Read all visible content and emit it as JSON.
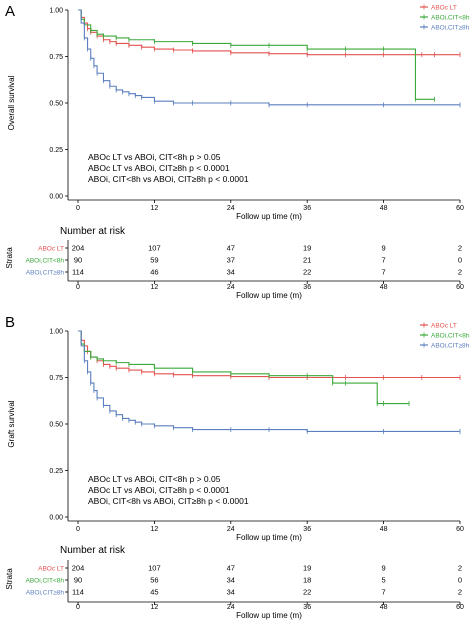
{
  "chart_data": [
    {
      "panel_label": "A",
      "type": "line",
      "step": true,
      "xlabel": "Follow up time (m)",
      "ylabel": "Overall survival",
      "xlim": [
        0,
        60
      ],
      "ylim": [
        0,
        1
      ],
      "xticks": [
        "0",
        "12",
        "24",
        "36",
        "48",
        "60"
      ],
      "yticks": [
        "0.00",
        "0.25",
        "0.50",
        "0.75",
        "1.00"
      ],
      "legend_position": "top-right",
      "annotations": [
        "ABOc LT vs ABOi, CIT<8h p > 0.05",
        "ABOc LT vs ABOi, CIT≥8h p < 0.0001",
        "ABOi, CIT<8h vs ABOi, CIT≥8h p < 0.0001"
      ],
      "series": [
        {
          "name": "ABOc LT",
          "color": "#e4524f",
          "x": [
            0,
            0.5,
            1,
            1.5,
            2,
            3,
            4,
            5,
            6,
            8,
            10,
            12,
            15,
            18,
            24,
            30,
            36,
            42,
            48,
            54,
            56,
            60
          ],
          "y": [
            1.0,
            0.96,
            0.93,
            0.9,
            0.88,
            0.86,
            0.84,
            0.83,
            0.82,
            0.81,
            0.8,
            0.79,
            0.785,
            0.78,
            0.77,
            0.765,
            0.76,
            0.76,
            0.76,
            0.76,
            0.76,
            0.76
          ]
        },
        {
          "name": "ABOi,CIT<8h",
          "color": "#3aa83a",
          "x": [
            0,
            0.5,
            1,
            2,
            3,
            4,
            6,
            8,
            12,
            18,
            24,
            30,
            36,
            42,
            48,
            53,
            56
          ],
          "y": [
            1.0,
            0.95,
            0.92,
            0.89,
            0.87,
            0.86,
            0.85,
            0.84,
            0.83,
            0.82,
            0.81,
            0.81,
            0.79,
            0.79,
            0.79,
            0.52,
            0.52
          ]
        },
        {
          "name": "ABOi,CIT≥8h",
          "color": "#5b7fbf",
          "x": [
            0,
            0.5,
            1,
            1.5,
            2,
            2.5,
            3,
            4,
            5,
            6,
            7,
            8,
            9,
            10,
            12,
            15,
            18,
            24,
            30,
            36,
            48,
            60
          ],
          "y": [
            1.0,
            0.93,
            0.85,
            0.79,
            0.74,
            0.7,
            0.66,
            0.62,
            0.59,
            0.57,
            0.56,
            0.55,
            0.54,
            0.53,
            0.51,
            0.5,
            0.5,
            0.5,
            0.49,
            0.49,
            0.49,
            0.49
          ]
        }
      ],
      "risk_table": {
        "title": "Number at risk",
        "strata_label": "Strata",
        "xlabel": "Follow up time (m)",
        "rows": [
          {
            "label": "ABOc LT",
            "values": [
              "204",
              "107",
              "47",
              "19",
              "9",
              "2"
            ]
          },
          {
            "label": "ABOi,CIT<8h",
            "values": [
              "90",
              "59",
              "37",
              "21",
              "7",
              "0"
            ]
          },
          {
            "label": "ABOi,CIT≥8h",
            "values": [
              "114",
              "46",
              "34",
              "22",
              "7",
              "2"
            ]
          }
        ]
      }
    },
    {
      "panel_label": "B",
      "type": "line",
      "step": true,
      "xlabel": "Follow up time (m)",
      "ylabel": "Graft survival",
      "xlim": [
        0,
        60
      ],
      "ylim": [
        0,
        1
      ],
      "xticks": [
        "0",
        "12",
        "24",
        "36",
        "48",
        "60"
      ],
      "yticks": [
        "0.00",
        "0.25",
        "0.50",
        "0.75",
        "1.00"
      ],
      "legend_position": "top-right",
      "annotations": [
        "ABOc LT vs ABOi, CIT<8h p > 0.05",
        "ABOc LT vs ABOi, CIT≥8h p < 0.0001",
        "ABOi, CIT<8h vs ABOi, CIT≥8h p < 0.0001"
      ],
      "series": [
        {
          "name": "ABOc LT",
          "color": "#e4524f",
          "x": [
            0,
            0.5,
            1,
            1.5,
            2,
            3,
            4,
            5,
            6,
            8,
            10,
            12,
            15,
            18,
            24,
            30,
            36,
            42,
            48,
            54,
            60
          ],
          "y": [
            1.0,
            0.95,
            0.92,
            0.89,
            0.86,
            0.84,
            0.82,
            0.81,
            0.8,
            0.79,
            0.78,
            0.77,
            0.765,
            0.76,
            0.755,
            0.75,
            0.75,
            0.75,
            0.75,
            0.75,
            0.75
          ]
        },
        {
          "name": "ABOi,CIT<8h",
          "color": "#3aa83a",
          "x": [
            0,
            0.5,
            1,
            2,
            3,
            4,
            6,
            8,
            12,
            18,
            24,
            30,
            36,
            40,
            42,
            47,
            48,
            52
          ],
          "y": [
            1.0,
            0.93,
            0.89,
            0.86,
            0.85,
            0.84,
            0.83,
            0.82,
            0.8,
            0.78,
            0.77,
            0.76,
            0.76,
            0.72,
            0.72,
            0.61,
            0.61,
            0.61
          ]
        },
        {
          "name": "ABOi,CIT≥8h",
          "color": "#5b7fbf",
          "x": [
            0,
            0.5,
            1,
            1.5,
            2,
            2.5,
            3,
            4,
            5,
            6,
            7,
            8,
            9,
            10,
            12,
            15,
            18,
            24,
            30,
            36,
            48,
            60
          ],
          "y": [
            1.0,
            0.92,
            0.84,
            0.78,
            0.72,
            0.68,
            0.64,
            0.6,
            0.57,
            0.55,
            0.53,
            0.52,
            0.51,
            0.5,
            0.49,
            0.48,
            0.47,
            0.47,
            0.47,
            0.46,
            0.46,
            0.46
          ]
        }
      ],
      "risk_table": {
        "title": "Number at risk",
        "strata_label": "Strata",
        "xlabel": "Follow up time (m)",
        "rows": [
          {
            "label": "ABOc LT",
            "values": [
              "204",
              "107",
              "47",
              "19",
              "9",
              "2"
            ]
          },
          {
            "label": "ABOi,CIT<8h",
            "values": [
              "90",
              "56",
              "34",
              "18",
              "5",
              "0"
            ]
          },
          {
            "label": "ABOi,CIT≥8h",
            "values": [
              "114",
              "45",
              "34",
              "22",
              "7",
              "2"
            ]
          }
        ]
      }
    }
  ]
}
